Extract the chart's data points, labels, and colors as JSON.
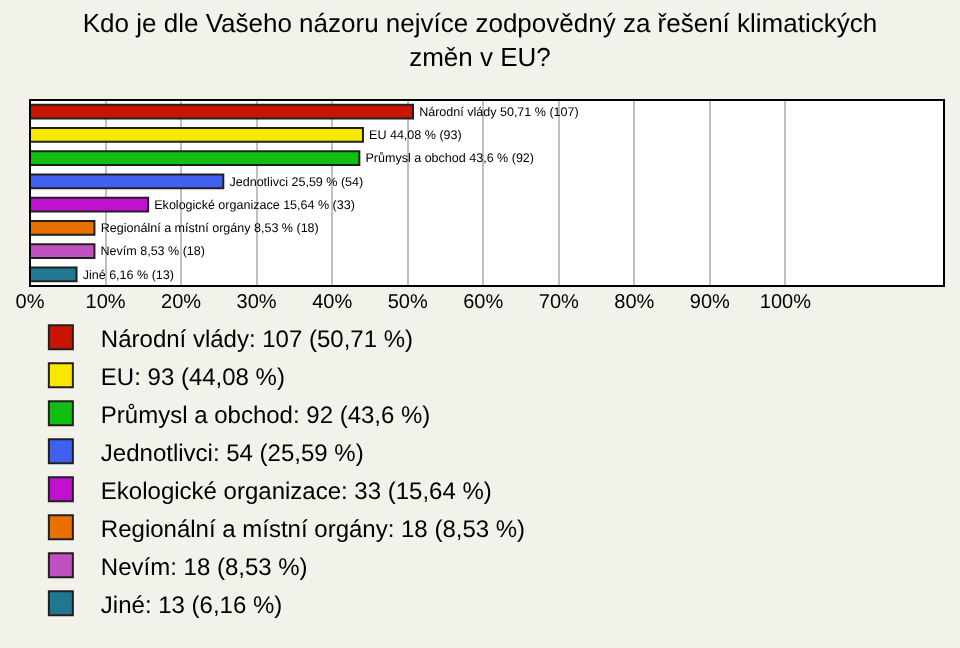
{
  "chart_data": {
    "type": "bar",
    "orientation": "horizontal",
    "title": "Kdo je dle Vašeho názoru nejvíce zodpovědný za řešení klimatických změn v EU?",
    "categories": [
      null,
      null,
      null,
      null,
      null,
      null,
      null,
      null
    ],
    "series": [
      {
        "name": "Národní vlády: 107 (50,71 %)",
        "color": "#c81400",
        "values": [
          50.71,
          null,
          null,
          null,
          null,
          null,
          null,
          null
        ],
        "value_labels": [
          "Národní vlády 50,71 % (107)",
          null,
          null,
          null,
          null,
          null,
          null,
          null
        ]
      },
      {
        "name": "EU: 93 (44,08 %)",
        "color": "#f8e800",
        "values": [
          null,
          44.08,
          null,
          null,
          null,
          null,
          null,
          null
        ],
        "value_labels": [
          null,
          "EU 44,08 % (93)",
          null,
          null,
          null,
          null,
          null,
          null
        ]
      },
      {
        "name": "Průmysl a obchod: 92 (43,6 %)",
        "color": "#10c010",
        "values": [
          null,
          null,
          43.6,
          null,
          null,
          null,
          null,
          null
        ],
        "value_labels": [
          null,
          null,
          "Průmysl a obchod 43,6 % (92)",
          null,
          null,
          null,
          null,
          null
        ]
      },
      {
        "name": "Jednotlivci: 54 (25,59 %)",
        "color": "#4060f0",
        "values": [
          null,
          null,
          null,
          25.59,
          null,
          null,
          null,
          null
        ],
        "value_labels": [
          null,
          null,
          null,
          "Jednotlivci 25,59 % (54)",
          null,
          null,
          null,
          null
        ]
      },
      {
        "name": "Ekologické organizace: 33 (15,64 %)",
        "color": "#c010d0",
        "values": [
          null,
          null,
          null,
          null,
          15.64,
          null,
          null,
          null
        ],
        "value_labels": [
          null,
          null,
          null,
          null,
          "Ekologické organizace 15,64 % (33)",
          null,
          null,
          null
        ]
      },
      {
        "name": "Regionální a místní orgány: 18 (8,53 %)",
        "color": "#e87000",
        "values": [
          null,
          null,
          null,
          null,
          null,
          8.53,
          null,
          null
        ],
        "value_labels": [
          null,
          null,
          null,
          null,
          null,
          "Regionální a místní orgány 8,53 % (18)",
          null,
          null
        ]
      },
      {
        "name": "Nevím: 18 (8,53 %)",
        "color": "#c050c0",
        "values": [
          null,
          null,
          null,
          null,
          null,
          null,
          8.53,
          null
        ],
        "value_labels": [
          null,
          null,
          null,
          null,
          null,
          null,
          "Nevím 8,53 % (18)",
          null
        ]
      },
      {
        "name": "Jiné: 13 (6,16 %)",
        "color": "#207890",
        "values": [
          null,
          null,
          null,
          null,
          null,
          null,
          null,
          6.16
        ],
        "value_labels": [
          null,
          null,
          null,
          null,
          null,
          null,
          null,
          "Jiné 6,16 % (13)"
        ]
      }
    ],
    "xlim": [
      0,
      121
    ],
    "xticks": [
      {
        "value": 0,
        "label": "0%"
      },
      {
        "value": 10,
        "label": "10%"
      },
      {
        "value": 20,
        "label": "20%"
      },
      {
        "value": 30,
        "label": "30%"
      },
      {
        "value": 40,
        "label": "40%"
      },
      {
        "value": 50,
        "label": "50%"
      },
      {
        "value": 60,
        "label": "60%"
      },
      {
        "value": 70,
        "label": "70%"
      },
      {
        "value": 80,
        "label": "80%"
      },
      {
        "value": 90,
        "label": "90%"
      },
      {
        "value": 100,
        "label": "100%"
      }
    ],
    "tick_labels": "x",
    "grid": "x",
    "legend": "bottom"
  }
}
